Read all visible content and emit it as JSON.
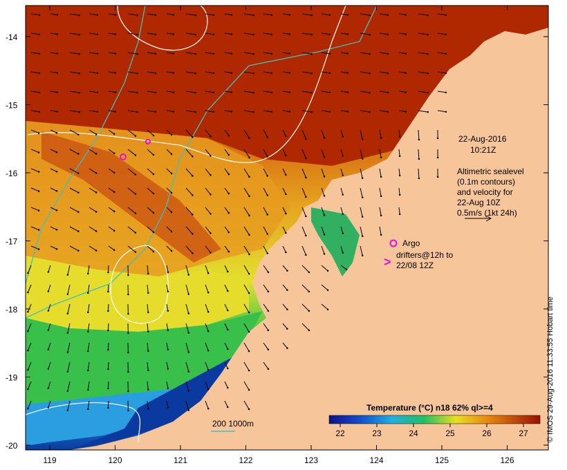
{
  "map": {
    "timestamp_date": "22-Aug-2016",
    "timestamp_time": "10:21Z",
    "altimetry_note": [
      "Altimetric sealevel",
      "(0.1m contours)",
      "and velocity for",
      "22-Aug 10Z",
      "0.5m/s (1kt 24h)"
    ],
    "argo_label": "Argo",
    "drifters_label": [
      "drifters@12h to",
      "22/08 12Z"
    ],
    "drifter_symbol": ">",
    "depth_legend": "200  1000m",
    "colorbar_title": "Temperature (°C) n18 62% ql>=4",
    "colorbar_ticks": [
      "22",
      "23",
      "24",
      "25",
      "26",
      "27"
    ],
    "lat_ticks": [
      "-14",
      "-15",
      "-16",
      "-17",
      "-18",
      "-19",
      "-20"
    ],
    "lon_ticks": [
      "119",
      "120",
      "121",
      "122",
      "123",
      "124",
      "125",
      "126"
    ],
    "credit": "© IMOS 29-Aug-2016 11:33:55 Hobart time",
    "colors": {
      "land": "#f7c59a",
      "sst_hot": "#a81c00",
      "sst_warm": "#d9650d",
      "sst_mid": "#e6a320",
      "sst_yellow": "#e8e02a",
      "sst_green": "#2fc24a",
      "sst_cyan": "#26a8d8",
      "sst_blue": "#0a3aa0",
      "contour": "#ffffff",
      "isobath": "#40c0c0",
      "marker": "#e010e0"
    }
  }
}
